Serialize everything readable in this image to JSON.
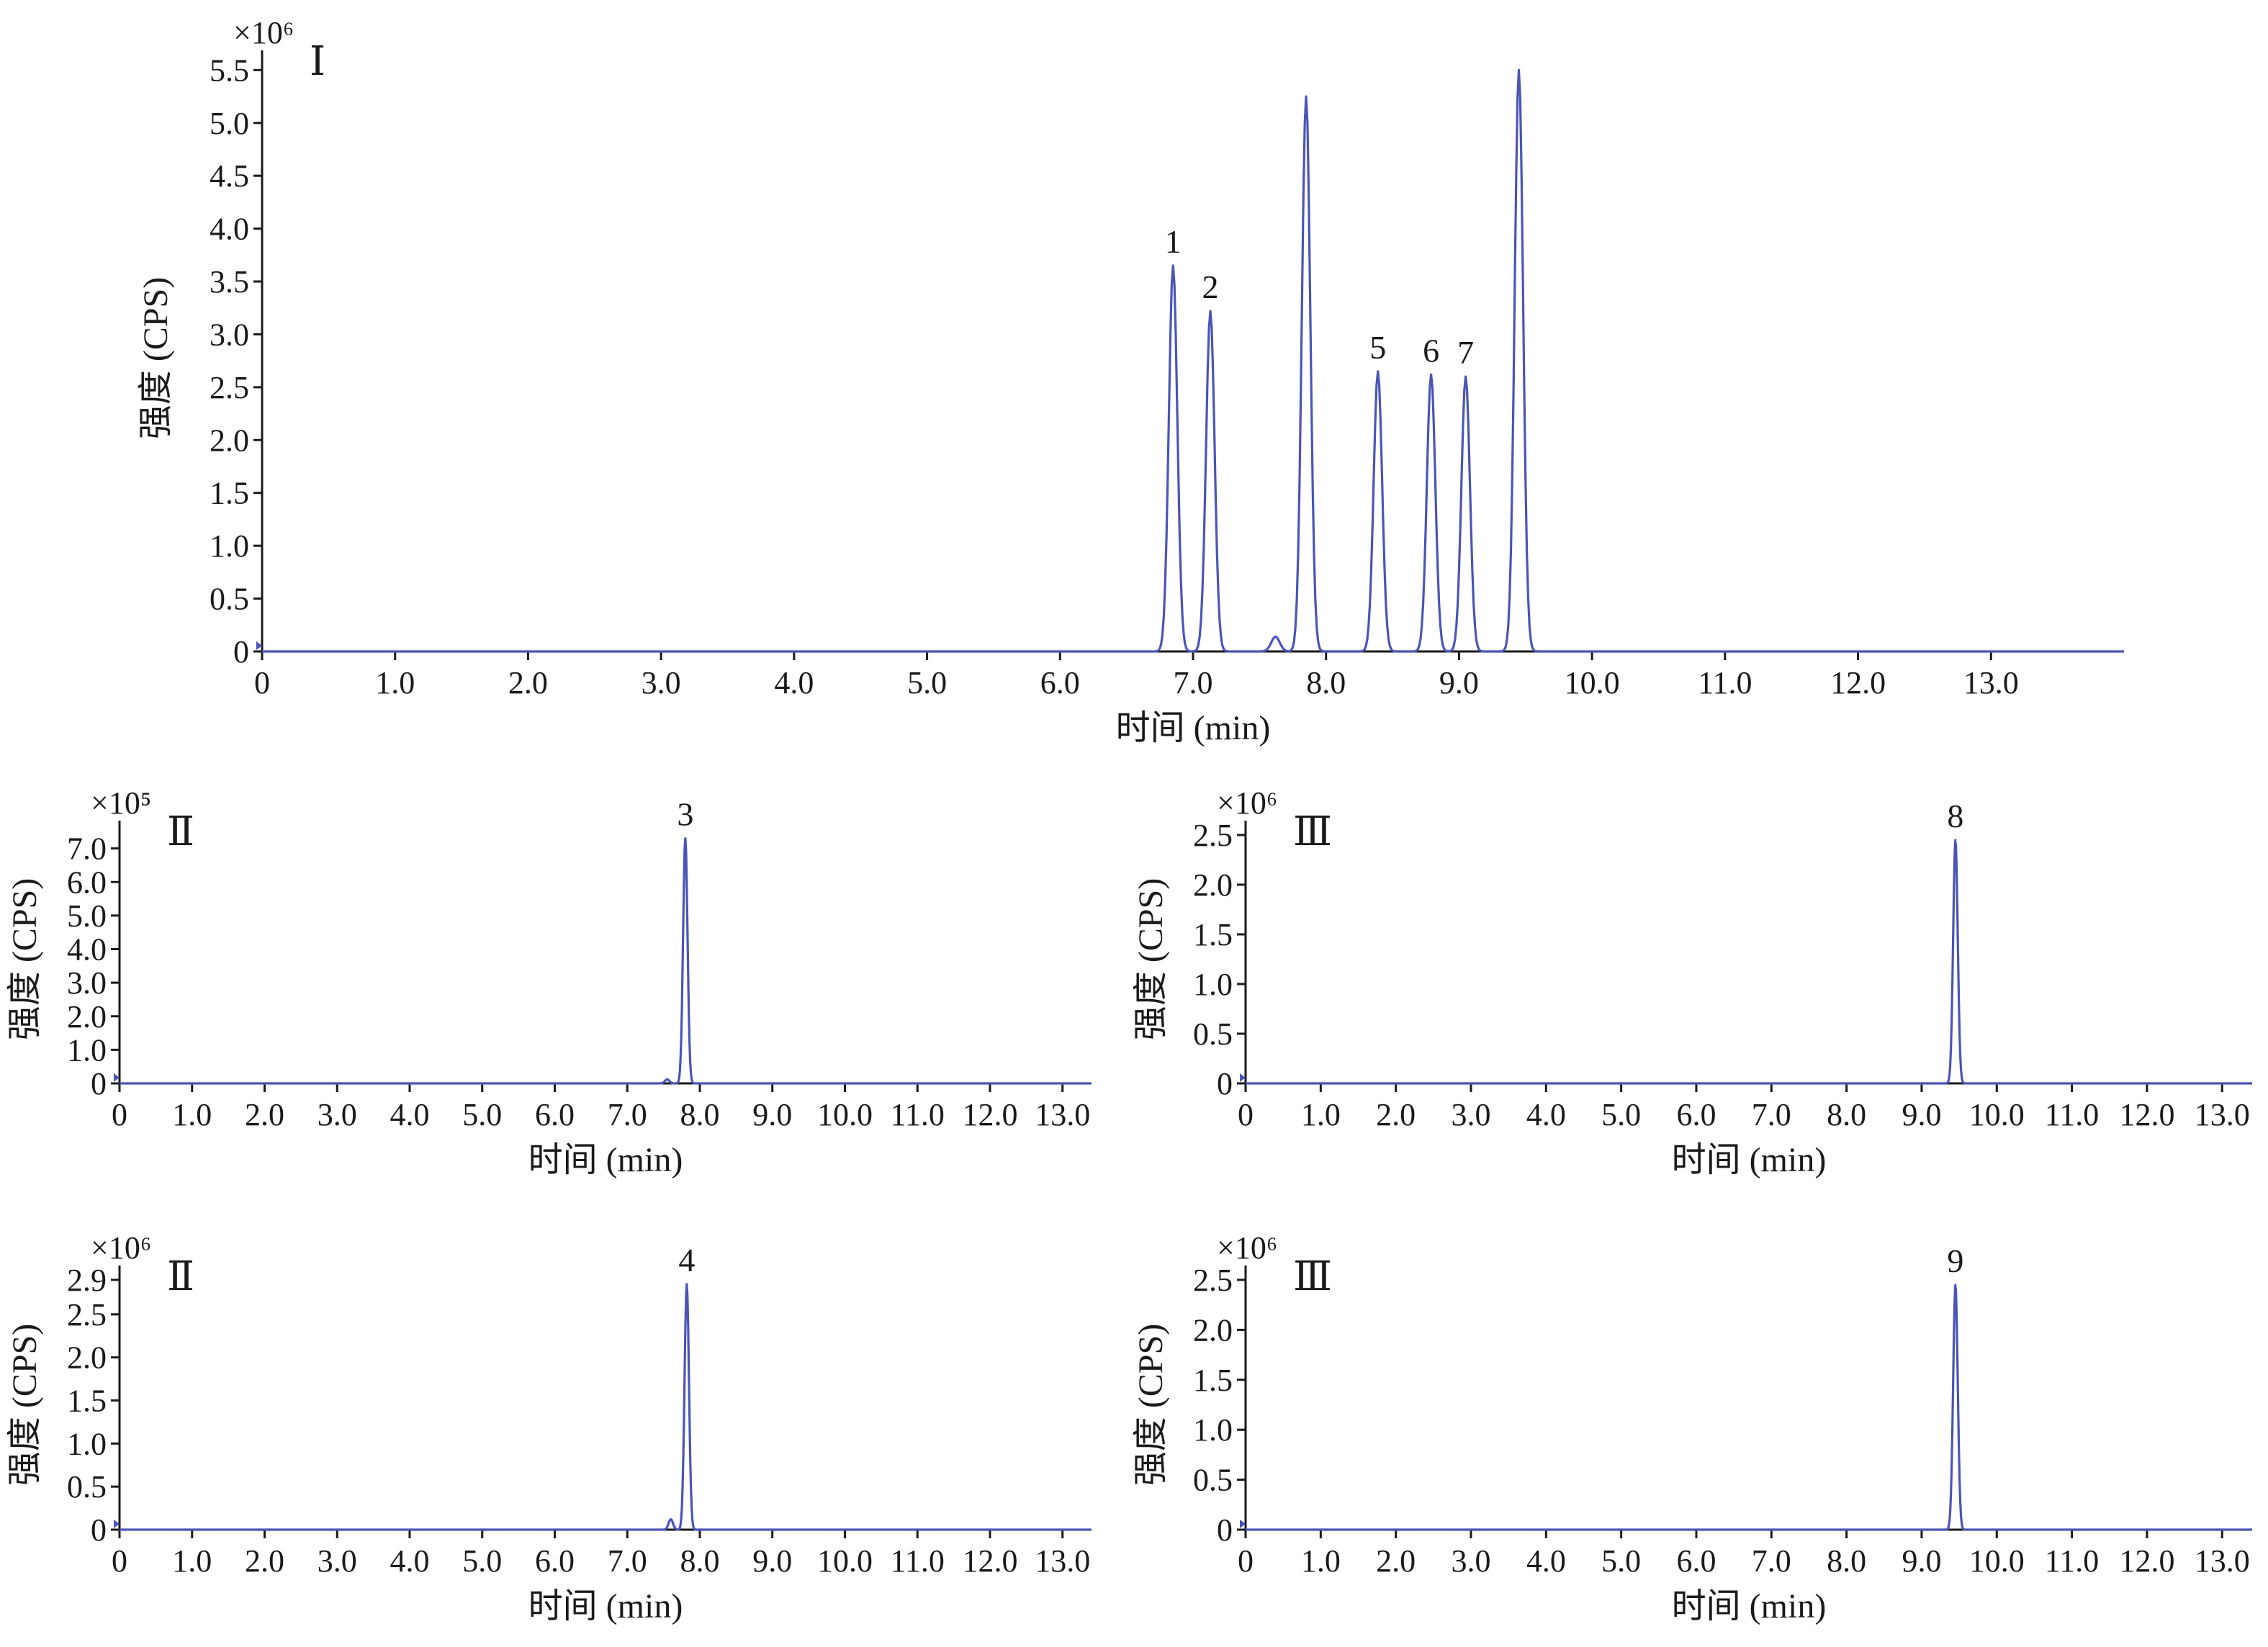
{
  "trace_color": "#4a55b8",
  "chart_data": [
    {
      "type": "line",
      "panel_label": "Ⅰ",
      "xlabel": "时间 (min)",
      "ylabel": "强度 (CPS)",
      "y_multiplier": "×10⁶",
      "xlim": [
        0,
        14
      ],
      "ylim": [
        0,
        5.55
      ],
      "x_ticks": [
        0,
        1.0,
        2.0,
        3.0,
        4.0,
        5.0,
        6.0,
        7.0,
        8.0,
        9.0,
        10.0,
        11.0,
        12.0,
        13.0
      ],
      "x_tick_labels": [
        "0",
        "1.0",
        "2.0",
        "3.0",
        "4.0",
        "5.0",
        "6.0",
        "7.0",
        "8.0",
        "9.0",
        "10.0",
        "11.0",
        "12.0",
        "13.0"
      ],
      "y_ticks": [
        0,
        0.5,
        1.0,
        1.5,
        2.0,
        2.5,
        3.0,
        3.5,
        4.0,
        4.5,
        5.0,
        5.5
      ],
      "y_tick_labels": [
        "0",
        "0.5",
        "1.0",
        "1.5",
        "2.0",
        "2.5",
        "3.0",
        "3.5",
        "4.0",
        "4.5",
        "5.0",
        "5.5"
      ],
      "peaks": [
        {
          "x": 6.85,
          "y": 3.65,
          "label": "1"
        },
        {
          "x": 7.13,
          "y": 3.22,
          "label": "2"
        },
        {
          "x": 7.62,
          "y": 0.14,
          "label": ""
        },
        {
          "x": 7.85,
          "y": 5.25,
          "label": ""
        },
        {
          "x": 8.39,
          "y": 2.65,
          "label": "5"
        },
        {
          "x": 8.79,
          "y": 2.62,
          "label": "6"
        },
        {
          "x": 9.05,
          "y": 2.6,
          "label": "7"
        },
        {
          "x": 9.45,
          "y": 5.5,
          "label": ""
        }
      ]
    },
    {
      "type": "line",
      "panel_label": "Ⅱ",
      "xlabel": "时间 (min)",
      "ylabel": "强度 (CPS)",
      "y_multiplier": "×10⁵",
      "xlim": [
        0,
        13.4
      ],
      "ylim": [
        0,
        7.4
      ],
      "x_ticks": [
        0,
        1.0,
        2.0,
        3.0,
        4.0,
        5.0,
        6.0,
        7.0,
        8.0,
        9.0,
        10.0,
        11.0,
        12.0,
        13.0
      ],
      "x_tick_labels": [
        "0",
        "1.0",
        "2.0",
        "3.0",
        "4.0",
        "5.0",
        "6.0",
        "7.0",
        "8.0",
        "9.0",
        "10.0",
        "11.0",
        "12.0",
        "13.0"
      ],
      "y_ticks": [
        0,
        1.0,
        2.0,
        3.0,
        4.0,
        5.0,
        6.0,
        7.0
      ],
      "y_tick_labels": [
        "0",
        "1.0",
        "2.0",
        "3.0",
        "4.0",
        "5.0",
        "6.0",
        "7.0"
      ],
      "peaks": [
        {
          "x": 7.55,
          "y": 0.12,
          "label": ""
        },
        {
          "x": 7.8,
          "y": 7.3,
          "label": "3"
        }
      ]
    },
    {
      "type": "line",
      "panel_label": "Ⅲ",
      "xlabel": "时间 (min)",
      "ylabel": "强度 (CPS)",
      "y_multiplier": "×10⁶",
      "xlim": [
        0,
        13.4
      ],
      "ylim": [
        0,
        2.5
      ],
      "x_ticks": [
        0,
        1.0,
        2.0,
        3.0,
        4.0,
        5.0,
        6.0,
        7.0,
        8.0,
        9.0,
        10.0,
        11.0,
        12.0,
        13.0
      ],
      "x_tick_labels": [
        "0",
        "1.0",
        "2.0",
        "3.0",
        "4.0",
        "5.0",
        "6.0",
        "7.0",
        "8.0",
        "9.0",
        "10.0",
        "11.0",
        "12.0",
        "13.0"
      ],
      "y_ticks": [
        0,
        0.5,
        1.0,
        1.5,
        2.0,
        2.5
      ],
      "y_tick_labels": [
        "0",
        "0.5",
        "1.0",
        "1.5",
        "2.0",
        "2.5"
      ],
      "peaks": [
        {
          "x": 9.45,
          "y": 2.45,
          "label": "8"
        }
      ]
    },
    {
      "type": "line",
      "panel_label": "Ⅱ",
      "xlabel": "时间 (min)",
      "ylabel": "强度 (CPS)",
      "y_multiplier": "×10⁶",
      "xlim": [
        0,
        13.4
      ],
      "ylim": [
        0,
        2.9
      ],
      "x_ticks": [
        0,
        1.0,
        2.0,
        3.0,
        4.0,
        5.0,
        6.0,
        7.0,
        8.0,
        9.0,
        10.0,
        11.0,
        12.0,
        13.0
      ],
      "x_tick_labels": [
        "0",
        "1.0",
        "2.0",
        "3.0",
        "4.0",
        "5.0",
        "6.0",
        "7.0",
        "8.0",
        "9.0",
        "10.0",
        "11.0",
        "12.0",
        "13.0"
      ],
      "y_ticks": [
        0,
        0.5,
        1.0,
        1.5,
        2.0,
        2.5,
        2.9
      ],
      "y_tick_labels": [
        "0",
        "0.5",
        "1.0",
        "1.5",
        "2.0",
        "2.5",
        "2.9"
      ],
      "peaks": [
        {
          "x": 7.6,
          "y": 0.12,
          "label": ""
        },
        {
          "x": 7.82,
          "y": 2.85,
          "label": "4"
        }
      ]
    },
    {
      "type": "line",
      "panel_label": "Ⅲ",
      "xlabel": "时间 (min)",
      "ylabel": "强度 (CPS)",
      "y_multiplier": "×10⁶",
      "xlim": [
        0,
        13.4
      ],
      "ylim": [
        0,
        2.5
      ],
      "x_ticks": [
        0,
        1.0,
        2.0,
        3.0,
        4.0,
        5.0,
        6.0,
        7.0,
        8.0,
        9.0,
        10.0,
        11.0,
        12.0,
        13.0
      ],
      "x_tick_labels": [
        "0",
        "1.0",
        "2.0",
        "3.0",
        "4.0",
        "5.0",
        "6.0",
        "7.0",
        "8.0",
        "9.0",
        "10.0",
        "11.0",
        "12.0",
        "13.0"
      ],
      "y_ticks": [
        0,
        0.5,
        1.0,
        1.5,
        2.0,
        2.5
      ],
      "y_tick_labels": [
        "0",
        "0.5",
        "1.0",
        "1.5",
        "2.0",
        "2.5"
      ],
      "peaks": [
        {
          "x": 9.45,
          "y": 2.45,
          "label": "9"
        }
      ]
    }
  ]
}
